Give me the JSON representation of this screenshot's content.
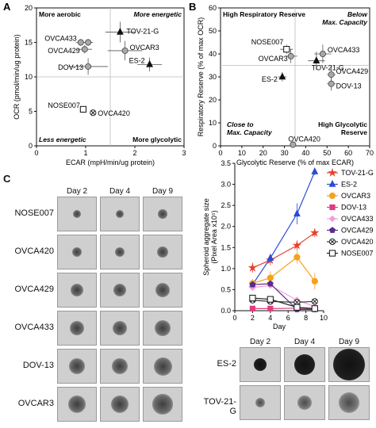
{
  "panel_labels": {
    "a": "A",
    "b": "B",
    "c": "C"
  },
  "chart_data": [
    {
      "id": "A",
      "type": "scatter",
      "xlabel": "ECAR (mpH/min/ug protein)",
      "ylabel": "OCR (pmol/min/ug protein)",
      "xlim": [
        0,
        3
      ],
      "ylim": [
        0,
        20
      ],
      "xticks": [
        0,
        1,
        2,
        3
      ],
      "yticks": [
        0,
        5,
        10,
        15,
        20
      ],
      "quadrant_lines": {
        "x": 1.5,
        "y": 10
      },
      "quadrant_labels": {
        "top_left": "More aerobic",
        "top_right": "More energetic",
        "bottom_left": "Less energetic",
        "bottom_right": "More glycolytic"
      },
      "points": [
        {
          "name": "TOV-21-G",
          "x": 1.7,
          "y": 16.5,
          "xerr": 0.3,
          "yerr": 1.5,
          "marker": "triangle"
        },
        {
          "name": "OVCA433",
          "x": 0.9,
          "y": 15.0,
          "xerr": 0.1,
          "yerr": 0.5,
          "marker": "circle-gray"
        },
        {
          "name": "OVCA433b",
          "x": 1.05,
          "y": 15.0,
          "xerr": 0.1,
          "yerr": 0.5,
          "marker": "circle-gray"
        },
        {
          "name": "OVCA429",
          "x": 0.98,
          "y": 14.0,
          "xerr": 0.15,
          "yerr": 0.6,
          "marker": "circle-gray"
        },
        {
          "name": "OVCAR3",
          "x": 1.8,
          "y": 13.8,
          "xerr": 0.35,
          "yerr": 1.4,
          "marker": "circle-gray"
        },
        {
          "name": "ES-2",
          "x": 2.3,
          "y": 11.8,
          "xerr": 0.25,
          "yerr": 1.0,
          "marker": "triangle"
        },
        {
          "name": "DOV-13",
          "x": 1.05,
          "y": 11.5,
          "xerr": 0.4,
          "yerr": 1.2,
          "marker": "circle-gray"
        },
        {
          "name": "NOSE007",
          "x": 0.95,
          "y": 5.3,
          "xerr": 0.05,
          "yerr": 0.3,
          "marker": "square-open"
        },
        {
          "name": "OVCA420",
          "x": 1.15,
          "y": 4.8,
          "xerr": 0.05,
          "yerr": 0.3,
          "marker": "circle-x"
        }
      ],
      "point_labels": [
        {
          "text": "TOV-21-G",
          "for": "TOV-21-G"
        },
        {
          "text": "OVCA433",
          "for": "OVCA433"
        },
        {
          "text": "OVCA429",
          "for": "OVCA429"
        },
        {
          "text": "OVCAR3",
          "for": "OVCAR3"
        },
        {
          "text": "ES-2",
          "for": "ES-2"
        },
        {
          "text": "DOV-13",
          "for": "DOV-13"
        },
        {
          "text": "NOSE007",
          "for": "NOSE007"
        },
        {
          "text": "OVCA420",
          "for": "OVCA420"
        }
      ]
    },
    {
      "id": "B",
      "type": "scatter",
      "xlabel": "Glycolytic Reserve (% of max ECAR)",
      "ylabel": "Respiratory Reserve (% of max OCR)",
      "xlim": [
        0,
        70
      ],
      "ylim": [
        0,
        60
      ],
      "xticks": [
        0,
        10,
        20,
        30,
        40,
        50,
        60,
        70
      ],
      "yticks": [
        0,
        10,
        20,
        30,
        40,
        50,
        60
      ],
      "quadrant_lines": {
        "x": 35,
        "y": 35
      },
      "quadrant_labels": {
        "top_left": "High Respiratory Reserve",
        "top_right": "Below Max. Capacity",
        "bottom_left": "Close to Max. Capacity",
        "bottom_right": "High Glycolytic Reserve"
      },
      "points": [
        {
          "name": "NOSE007",
          "x": 31,
          "y": 42,
          "xerr": 3,
          "yerr": 2,
          "marker": "square-open"
        },
        {
          "name": "OVCAR3",
          "x": 33,
          "y": 39,
          "xerr": 3,
          "yerr": 3,
          "marker": "circle-gray"
        },
        {
          "name": "OVCA433",
          "x": 48,
          "y": 40,
          "xerr": 4,
          "yerr": 4,
          "marker": "circle-gray"
        },
        {
          "name": "TOV-21-G",
          "x": 45,
          "y": 37,
          "xerr": 4,
          "yerr": 4,
          "marker": "triangle"
        },
        {
          "name": "ES-2",
          "x": 29,
          "y": 30,
          "xerr": 2,
          "yerr": 2,
          "marker": "triangle"
        },
        {
          "name": "OVCA429",
          "x": 52,
          "y": 31,
          "xerr": 2,
          "yerr": 4,
          "marker": "circle-gray"
        },
        {
          "name": "DOV-13",
          "x": 52,
          "y": 27,
          "xerr": 2,
          "yerr": 3,
          "marker": "circle-gray"
        },
        {
          "name": "OVCA420",
          "x": 34,
          "y": 0.5,
          "xerr": 0,
          "yerr": 0,
          "marker": "circle-gray"
        }
      ],
      "point_labels": [
        {
          "text": "NOSE007",
          "for": "NOSE007"
        },
        {
          "text": "OVCAR3",
          "for": "OVCAR3"
        },
        {
          "text": "OVCA433",
          "for": "OVCA433"
        },
        {
          "text": "TOV-21-G",
          "for": "TOV-21-G"
        },
        {
          "text": "ES-2",
          "for": "ES-2"
        },
        {
          "text": "OVCA429",
          "for": "OVCA429"
        },
        {
          "text": "DOV-13",
          "for": "DOV-13"
        },
        {
          "text": "OVCA420",
          "for": "OVCA420"
        }
      ]
    },
    {
      "id": "C-line",
      "type": "line",
      "xlabel": "Day",
      "ylabel": "Spheroid aggregate size\n(Pixel Area x10⁵)",
      "xlim": [
        0,
        10
      ],
      "ylim": [
        0,
        3.5
      ],
      "xticks": [
        0,
        2,
        4,
        6,
        8,
        10
      ],
      "yticks": [
        0.0,
        0.5,
        1.0,
        1.5,
        2.0,
        2.5,
        3.0,
        3.5
      ],
      "x": [
        2,
        4,
        7,
        9
      ],
      "series": [
        {
          "name": "TOV-21-G",
          "color": "#e8412b",
          "marker": "star",
          "values": [
            1.02,
            1.2,
            1.55,
            1.85
          ],
          "err": [
            0.12,
            0.12,
            0.12,
            0.1
          ]
        },
        {
          "name": "ES-2",
          "color": "#2a4bd7",
          "marker": "triangle",
          "values": [
            0.62,
            1.25,
            2.3,
            3.3
          ],
          "err": [
            0.1,
            0.1,
            0.25,
            0.08
          ]
        },
        {
          "name": "OVCAR3",
          "color": "#f4a21b",
          "marker": "circle",
          "values": [
            0.65,
            0.78,
            1.27,
            0.7
          ],
          "err": [
            0.1,
            0.15,
            0.15,
            0.2
          ]
        },
        {
          "name": "DOV-13",
          "color": "#df3d7e",
          "marker": "square",
          "values": [
            0.05,
            0.05,
            0.06,
            0.05
          ],
          "err": [
            0.02,
            0.02,
            0.02,
            0.02
          ]
        },
        {
          "name": "OVCA433",
          "color": "#f19fd8",
          "marker": "diamond",
          "values": [
            0.55,
            0.6,
            0.25,
            0.1
          ],
          "err": [
            0.05,
            0.05,
            0.05,
            0.05
          ]
        },
        {
          "name": "OVCA429",
          "color": "#5a2a90",
          "marker": "pentagon",
          "values": [
            0.62,
            0.64,
            0.03,
            0.03
          ],
          "err": [
            0.05,
            0.05,
            0.02,
            0.02
          ]
        },
        {
          "name": "OVCA420",
          "color": "#333333",
          "marker": "circle-x",
          "values": [
            0.25,
            0.22,
            0.2,
            0.22
          ],
          "err": [
            0.03,
            0.03,
            0.03,
            0.03
          ]
        },
        {
          "name": "NOSE007",
          "color": "#222222",
          "marker": "square-open",
          "values": [
            0.3,
            0.27,
            0.08,
            0.05
          ],
          "err": [
            0.03,
            0.03,
            0.02,
            0.02
          ]
        }
      ],
      "legend_position": "right"
    }
  ],
  "micrographs_left": {
    "columns": [
      "Day 2",
      "Day 4",
      "Day 9"
    ],
    "rows": [
      "NOSE007",
      "OVCA420",
      "OVCA429",
      "OVCA433",
      "DOV-13",
      "OVCAR3"
    ]
  },
  "micrographs_right": {
    "columns": [
      "Day 2",
      "Day 4",
      "Day 9"
    ],
    "rows": [
      "ES-2",
      "TOV-21-G"
    ]
  }
}
